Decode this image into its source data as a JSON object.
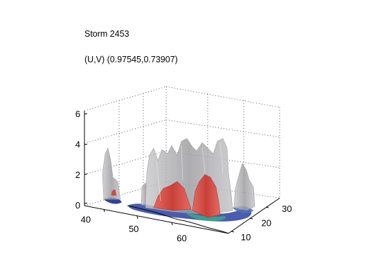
{
  "chart_data": {
    "type": "surface3d",
    "title": "Storm 2453",
    "subtitle": "(U,V) (0.97545,0.73907)",
    "xlabel": "",
    "ylabel": "",
    "zlabel": "",
    "x_ticks": [
      40,
      50,
      60
    ],
    "y_ticks": [
      10,
      20,
      30
    ],
    "z_ticks": [
      0,
      2,
      4,
      6
    ],
    "xlim": [
      38,
      68
    ],
    "ylim": [
      8,
      33
    ],
    "zlim": [
      0,
      6.2
    ],
    "grid": true,
    "layers": [
      {
        "color": "#a8a8aa",
        "role": "outer isosurface (translucent gray)"
      },
      {
        "color": "#d9534f",
        "role": "inner isosurface (red)"
      },
      {
        "color": "#2a3f9e",
        "role": "base contour (blue/green)"
      }
    ]
  }
}
